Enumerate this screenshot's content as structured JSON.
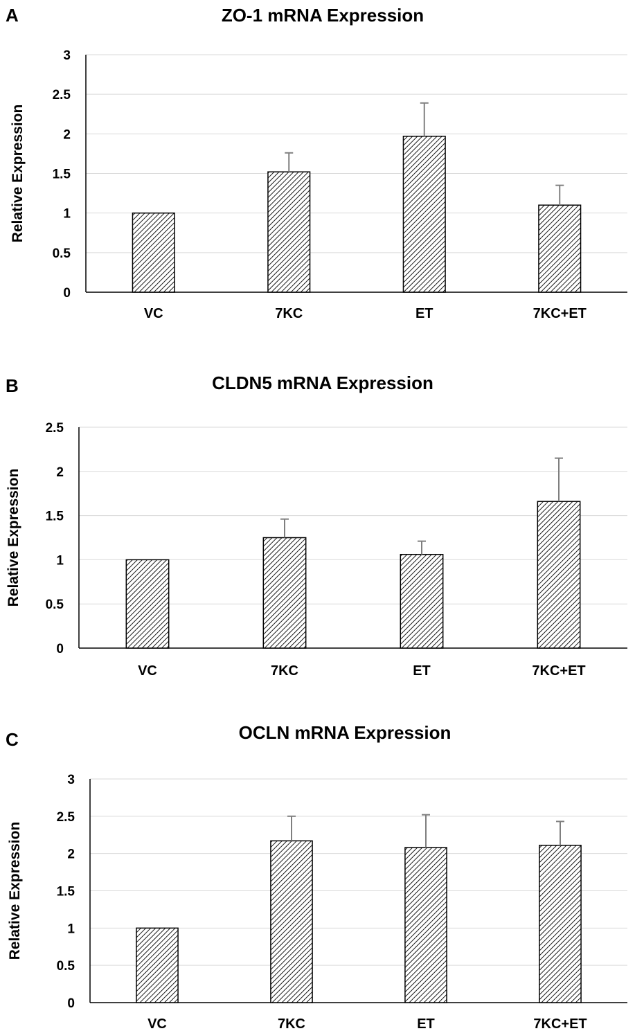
{
  "chart_data": [
    {
      "type": "bar",
      "panel_label": "A",
      "title": "ZO-1 mRNA Expression",
      "ylabel": "Relative Expression",
      "xlabel": "",
      "categories": [
        "VC",
        "7KC",
        "ET",
        "7KC+ET"
      ],
      "values": [
        1.0,
        1.52,
        1.97,
        1.1
      ],
      "errors": [
        0.0,
        0.24,
        0.42,
        0.25
      ],
      "ylim": [
        0,
        3
      ],
      "yticks": [
        0,
        0.5,
        1,
        1.5,
        2,
        2.5,
        3
      ],
      "ytick_labels": [
        "0",
        "0.5",
        "1",
        "1.5",
        "2",
        "2.5",
        "3"
      ],
      "grid": true,
      "bar_pattern": "diagonal-hatch"
    },
    {
      "type": "bar",
      "panel_label": "B",
      "title": "CLDN5 mRNA Expression",
      "ylabel": "Relative Expression",
      "xlabel": "",
      "categories": [
        "VC",
        "7KC",
        "ET",
        "7KC+ET"
      ],
      "values": [
        1.0,
        1.25,
        1.06,
        1.66
      ],
      "errors": [
        0.0,
        0.21,
        0.15,
        0.49
      ],
      "ylim": [
        0,
        2.5
      ],
      "yticks": [
        0,
        0.5,
        1,
        1.5,
        2,
        2.5
      ],
      "ytick_labels": [
        "0",
        "0.5",
        "1",
        "1.5",
        "2",
        "2.5"
      ],
      "grid": true,
      "bar_pattern": "diagonal-hatch"
    },
    {
      "type": "bar",
      "panel_label": "C",
      "title": "OCLN mRNA Expression",
      "ylabel": "Relative Expression",
      "xlabel": "",
      "categories": [
        "VC",
        "7KC",
        "ET",
        "7KC+ET"
      ],
      "values": [
        1.0,
        2.17,
        2.08,
        2.11
      ],
      "errors": [
        0.0,
        0.33,
        0.44,
        0.32
      ],
      "ylim": [
        0,
        3
      ],
      "yticks": [
        0,
        0.5,
        1,
        1.5,
        2,
        2.5,
        3
      ],
      "ytick_labels": [
        "0",
        "0.5",
        "1",
        "1.5",
        "2",
        "2.5",
        "3"
      ],
      "grid": true,
      "bar_pattern": "diagonal-hatch"
    }
  ],
  "colors": {
    "bar_fill": "#ffffff",
    "hatch": "#000000",
    "error_bar": "#7f7f7f",
    "gridline": "#d9d9d9",
    "axis": "#000000"
  }
}
